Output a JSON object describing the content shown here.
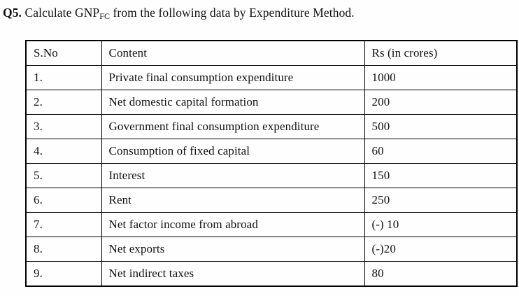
{
  "question": {
    "number": "Q5.",
    "text_before_sub": " Calculate GNP",
    "subscript": "FC",
    "text_after_sub": " from the following data by Expenditure Method."
  },
  "table": {
    "headers": [
      "S.No",
      "Content",
      "Rs (in crores)"
    ],
    "rows": [
      {
        "sno": "1.",
        "content": "Private final consumption expenditure",
        "amount": "1000"
      },
      {
        "sno": "2.",
        "content": "Net domestic capital formation",
        "amount": "200"
      },
      {
        "sno": "3.",
        "content": "Government final consumption expenditure",
        "amount": "500"
      },
      {
        "sno": "4.",
        "content": "Consumption of fixed capital",
        "amount": "60"
      },
      {
        "sno": "5.",
        "content": "Interest",
        "amount": "150"
      },
      {
        "sno": "6.",
        "content": "Rent",
        "amount": "250"
      },
      {
        "sno": "7.",
        "content": "Net factor income from abroad",
        "amount": "(-) 10"
      },
      {
        "sno": "8.",
        "content": "Net exports",
        "amount": "(-)20"
      },
      {
        "sno": "9.",
        "content": "Net indirect taxes",
        "amount": "80"
      }
    ]
  }
}
